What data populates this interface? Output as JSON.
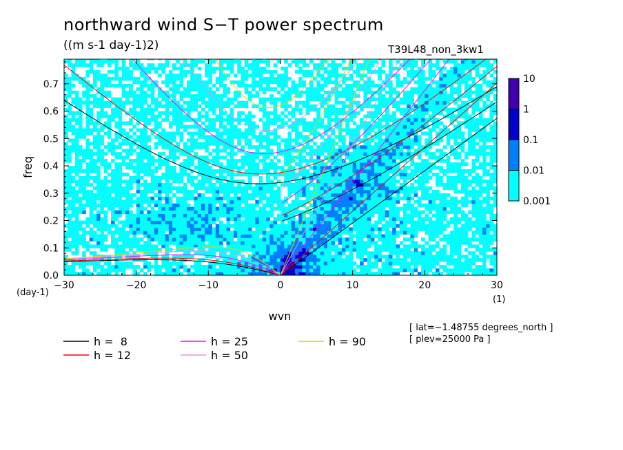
{
  "header": {
    "title": "northward wind S−T power spectrum",
    "units": "((m s-1 day-1)2)",
    "run_id": "T39L48_non_3kw1"
  },
  "info": {
    "lat": "[ lat=−1.48755 degrees_north ]",
    "plev": "[ plev=25000 Pa ]"
  },
  "chart_data": {
    "type": "heatmap",
    "title": "northward wind S−T power spectrum",
    "subtitle": "((m s-1 day-1)2)",
    "xlabel": "wvn",
    "ylabel": "freq",
    "x_unit": "(1)",
    "y_unit": "(day-1)",
    "xlim": [
      -30,
      30
    ],
    "ylim": [
      0,
      0.79
    ],
    "x_ticks": [
      -30,
      -20,
      -10,
      0,
      10,
      20,
      30
    ],
    "x_tick_labels": [
      "−30",
      "−20",
      "−10",
      "0",
      "10",
      "20",
      "30"
    ],
    "y_ticks": [
      0.0,
      0.1,
      0.2,
      0.3,
      0.4,
      0.5,
      0.6,
      0.7
    ],
    "y_tick_labels": [
      "0.0",
      "0.1",
      "0.2",
      "0.3",
      "0.4",
      "0.5",
      "0.6",
      "0.7"
    ],
    "colorbar": {
      "levels": [
        0.001,
        0.01,
        0.1,
        1,
        10
      ],
      "labels": [
        "0.001",
        "0.01",
        "0.1",
        "1",
        "10"
      ],
      "colors": [
        "#00ffff",
        "#0080ff",
        "#0000c8",
        "#4000b0"
      ]
    },
    "dispersion_curves": [
      {
        "name": "h =  8",
        "h": 8,
        "color": "#000000"
      },
      {
        "name": "h = 12",
        "h": 12,
        "color": "#ff0000"
      },
      {
        "name": "h = 25",
        "h": 25,
        "color": "#ff00ff"
      },
      {
        "name": "h = 50",
        "h": 50,
        "color": "#e890e8"
      },
      {
        "name": "h = 90",
        "h": 90,
        "color": "#e8d000"
      }
    ]
  }
}
